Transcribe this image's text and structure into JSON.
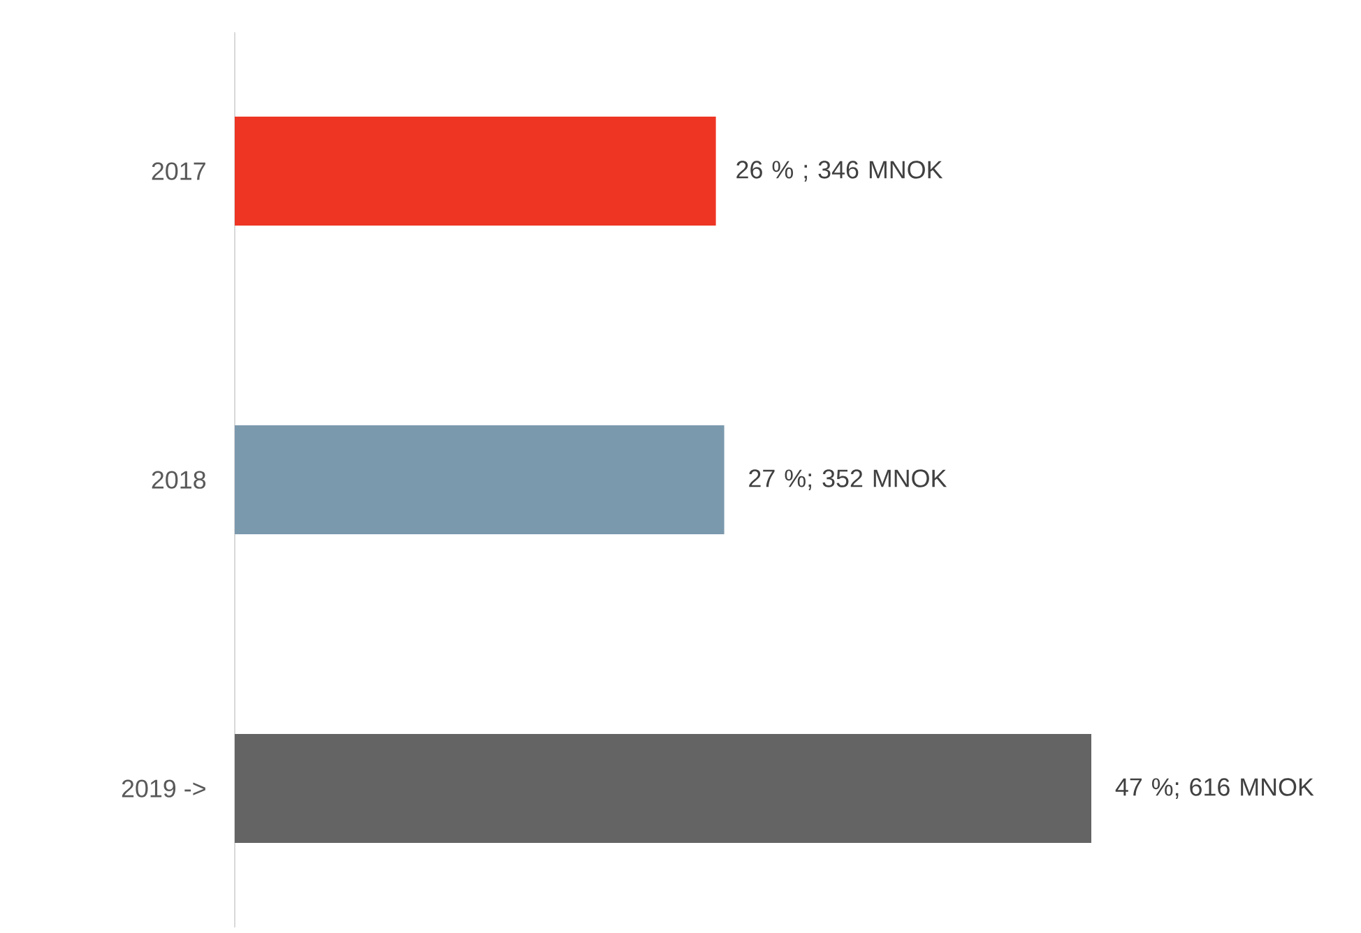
{
  "chart_data": {
    "type": "bar",
    "orientation": "horizontal",
    "categories": [
      "2017",
      "2018",
      "2019 ->"
    ],
    "values": [
      346,
      352,
      616
    ],
    "colors": [
      "#ee3524",
      "#7b99ad",
      "#646464"
    ],
    "value_labels": [
      "26  % ; 346 MNOK",
      "27 %; 352 MNOK",
      "47 %; 616 MNOK"
    ],
    "tick_labels": "y"
  }
}
